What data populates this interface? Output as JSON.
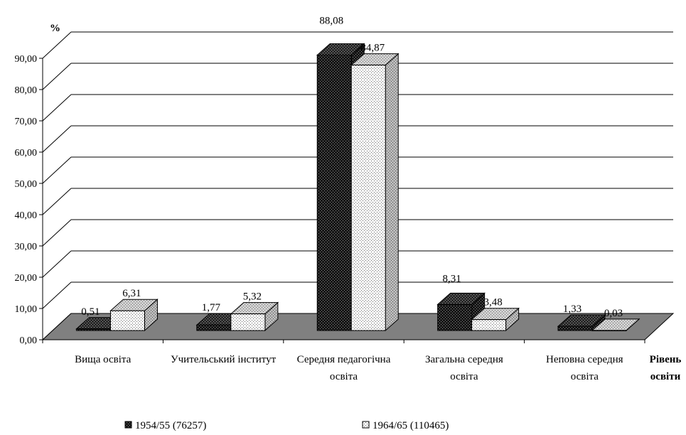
{
  "chart_data": {
    "type": "bar",
    "ylabel": "%",
    "xlabel": "Рівень освіти",
    "ylim": [
      0,
      90
    ],
    "yticks": [
      "0,00",
      "10,00",
      "20,00",
      "30,00",
      "40,00",
      "50,00",
      "60,00",
      "70,00",
      "80,00",
      "90,00"
    ],
    "categories": [
      [
        "Вища освіта"
      ],
      [
        "Учительський інститут"
      ],
      [
        "Середня педагогічна",
        "освіта"
      ],
      [
        "Загальна середня",
        "освіта"
      ],
      [
        "Неповна середня",
        "освіта"
      ]
    ],
    "series": [
      {
        "name": "1954/55 (76257)",
        "values": [
          0.51,
          1.77,
          88.08,
          8.31,
          1.33
        ],
        "labels": [
          "0,51",
          "1,77",
          "88,08",
          "8,31",
          "1,33"
        ],
        "color": "#1a1a1a"
      },
      {
        "name": "1964/65 (110465)",
        "values": [
          6.31,
          5.32,
          84.87,
          3.48,
          0.03
        ],
        "labels": [
          "6,31",
          "5,32",
          "84,87",
          "3,48",
          "0,03"
        ],
        "color": "#f2f2f2"
      }
    ],
    "grid": true,
    "legend_position": "bottom"
  }
}
